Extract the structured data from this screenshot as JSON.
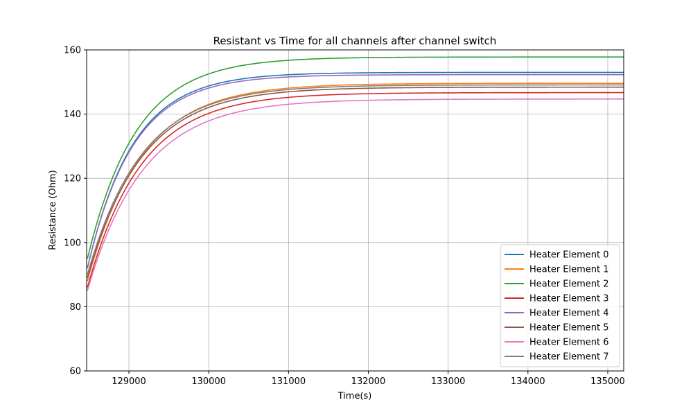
{
  "chart_data": {
    "type": "line",
    "title": "Resistant vs Time for all channels after channel switch",
    "xlabel": "Time(s)",
    "ylabel": "Resistance (Ohm)",
    "xlim": [
      128470,
      135200
    ],
    "ylim": [
      60,
      160
    ],
    "xticks": [
      129000,
      130000,
      131000,
      132000,
      133000,
      134000,
      135000
    ],
    "yticks": [
      60,
      80,
      100,
      120,
      140,
      160
    ],
    "grid": true,
    "legend": "lower-right",
    "start_x": 128480,
    "end_x": 135200,
    "series": [
      {
        "name": "Heater Element 0",
        "color": "#1f77b4",
        "start_y": 92,
        "final_y": 153.0,
        "settle_x": 131100
      },
      {
        "name": "Heater Element 1",
        "color": "#ff7f0e",
        "start_y": 88,
        "final_y": 149.6,
        "settle_x": 131600
      },
      {
        "name": "Heater Element 2",
        "color": "#2ca02c",
        "start_y": 95,
        "final_y": 157.8,
        "settle_x": 131300
      },
      {
        "name": "Heater Element 3",
        "color": "#d62728",
        "start_y": 86,
        "final_y": 146.7,
        "settle_x": 131600
      },
      {
        "name": "Heater Element 4",
        "color": "#9467bd",
        "start_y": 92,
        "final_y": 152.3,
        "settle_x": 131100
      },
      {
        "name": "Heater Element 5",
        "color": "#8c564b",
        "start_y": 89,
        "final_y": 148.4,
        "settle_x": 131600
      },
      {
        "name": "Heater Element 6",
        "color": "#e377c2",
        "start_y": 85,
        "final_y": 144.7,
        "settle_x": 131700
      },
      {
        "name": "Heater Element 7",
        "color": "#7f7f7f",
        "start_y": 90,
        "final_y": 149.1,
        "settle_x": 131600
      }
    ]
  }
}
